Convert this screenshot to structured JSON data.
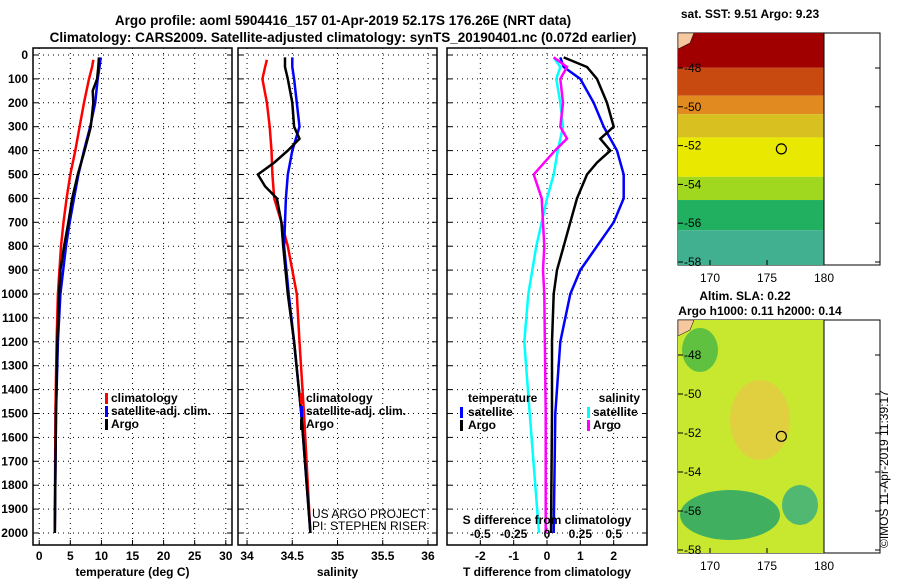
{
  "header": {
    "line1": "Argo profile: aoml 5904416_157 01-Apr-2019 52.17S 176.26E (NRT data)",
    "line2": "Climatology: CARS2009. Satellite-adjusted climatology: synTS_20190401.nc (0.072d earlier)"
  },
  "colors": {
    "climatology": "#ff0000",
    "satellite": "#0000ff",
    "argo": "#000000",
    "sal_sat": "#00ffff",
    "sal_argo": "#ff00ff"
  },
  "chart_data": [
    {
      "type": "line",
      "xlabel": "temperature (deg C)",
      "xlim": [
        -1,
        31
      ],
      "ylim": [
        2050,
        0
      ],
      "xticks": [
        "0",
        "5",
        "10",
        "15",
        "20",
        "25",
        "30"
      ],
      "xtickvals": [
        0,
        5,
        10,
        15,
        20,
        25,
        30
      ],
      "yticks": [
        "0",
        "100",
        "200",
        "300",
        "400",
        "500",
        "600",
        "700",
        "800",
        "900",
        "1000",
        "1100",
        "1200",
        "1300",
        "1400",
        "1500",
        "1600",
        "1700",
        "1800",
        "1900",
        "2000"
      ],
      "legend": [
        "climatology",
        "satellite-adj. clim.",
        "Argo"
      ],
      "series": [
        {
          "name": "climatology",
          "depth": [
            20,
            50,
            100,
            200,
            300,
            400,
            500,
            600,
            700,
            800,
            1000,
            1200,
            1500,
            2000
          ],
          "values": [
            8.7,
            8.5,
            8.0,
            7.2,
            6.5,
            5.8,
            5.0,
            4.4,
            3.9,
            3.5,
            3.0,
            2.8,
            2.6,
            2.5
          ]
        },
        {
          "name": "satellite-adj. clim.",
          "depth": [
            10,
            50,
            100,
            200,
            300,
            400,
            500,
            600,
            700,
            800,
            1000,
            1200,
            1500,
            2000
          ],
          "values": [
            9.9,
            9.7,
            9.4,
            9.0,
            8.2,
            7.2,
            6.3,
            5.6,
            4.9,
            4.3,
            3.4,
            3.0,
            2.7,
            2.5
          ]
        },
        {
          "name": "Argo",
          "depth": [
            10,
            50,
            100,
            150,
            200,
            300,
            350,
            400,
            500,
            600,
            700,
            800,
            900,
            1000,
            1200,
            1500,
            2000
          ],
          "values": [
            9.6,
            9.5,
            9.3,
            8.6,
            8.7,
            8.3,
            7.8,
            7.3,
            6.2,
            5.3,
            4.7,
            4.0,
            3.4,
            3.2,
            2.9,
            2.7,
            2.5
          ]
        }
      ]
    },
    {
      "type": "line",
      "xlabel": "salinity",
      "xlim": [
        33.9,
        36.1
      ],
      "ylim": [
        2050,
        0
      ],
      "xticks": [
        "34",
        "34.5",
        "35",
        "35.5",
        "36"
      ],
      "xtickvals": [
        34,
        34.5,
        35,
        35.5,
        36
      ],
      "legend": [
        "climatology",
        "satellite-adj. clim.",
        "Argo"
      ],
      "credit": [
        "US ARGO PROJECT",
        "PI: STEPHEN RISER"
      ],
      "series": [
        {
          "name": "climatology",
          "depth": [
            20,
            50,
            100,
            200,
            300,
            400,
            500,
            600,
            700,
            800,
            1000,
            1200,
            1500,
            2000
          ],
          "values": [
            34.22,
            34.2,
            34.17,
            34.22,
            34.25,
            34.27,
            34.28,
            34.3,
            34.38,
            34.45,
            34.55,
            34.58,
            34.63,
            34.7
          ]
        },
        {
          "name": "satellite-adj. clim.",
          "depth": [
            10,
            50,
            100,
            200,
            300,
            400,
            500,
            600,
            700,
            800,
            1000,
            1200,
            1500,
            2000
          ],
          "values": [
            34.5,
            34.5,
            34.52,
            34.55,
            34.58,
            34.5,
            34.45,
            34.43,
            34.42,
            34.41,
            34.46,
            34.52,
            34.6,
            34.7
          ]
        },
        {
          "name": "Argo",
          "depth": [
            10,
            50,
            100,
            200,
            300,
            350,
            400,
            450,
            500,
            550,
            600,
            700,
            800,
            1000,
            1200,
            1500,
            2000
          ],
          "values": [
            34.42,
            34.42,
            34.45,
            34.5,
            34.52,
            34.58,
            34.45,
            34.3,
            34.12,
            34.2,
            34.33,
            34.38,
            34.4,
            34.45,
            34.52,
            34.6,
            34.7
          ]
        }
      ]
    },
    {
      "type": "line",
      "xlabel": "T difference from climatology",
      "xlim": [
        -3,
        3
      ],
      "ylim": [
        2050,
        0
      ],
      "xticks": [
        "-2",
        "-1",
        "0",
        "1",
        "2"
      ],
      "xtickvals": [
        -2,
        -1,
        0,
        1,
        2
      ],
      "s_label": "S difference from climatology",
      "s_ticks": [
        "-0.5",
        "-0.25",
        "0",
        "0.25",
        "0.5"
      ],
      "s_tickvals": [
        -0.5,
        -0.25,
        0,
        0.25,
        0.5
      ],
      "legend_t": {
        "title": "temperature",
        "items": [
          "satellite",
          "Argo"
        ]
      },
      "legend_s": {
        "title": "salinity",
        "items": [
          "satellite",
          "Argo"
        ]
      },
      "series": [
        {
          "name": "T satellite",
          "depth": [
            10,
            50,
            100,
            200,
            300,
            400,
            500,
            600,
            700,
            800,
            900,
            1000,
            1200,
            1500,
            2000
          ],
          "values": [
            0.4,
            0.5,
            1.0,
            1.4,
            1.7,
            2.1,
            2.3,
            2.3,
            2.0,
            1.5,
            1.0,
            0.7,
            0.4,
            0.25,
            0.2
          ]
        },
        {
          "name": "T Argo",
          "depth": [
            10,
            50,
            100,
            200,
            300,
            350,
            400,
            450,
            500,
            600,
            700,
            800,
            900,
            1000,
            1200,
            1500,
            2000
          ],
          "values": [
            0.5,
            1.2,
            1.5,
            1.8,
            2.0,
            1.6,
            1.9,
            1.5,
            1.2,
            0.9,
            0.7,
            0.5,
            0.3,
            0.2,
            0.15,
            0.15,
            0.12
          ]
        },
        {
          "name": "S satellite",
          "depth": [
            10,
            50,
            100,
            200,
            300,
            400,
            500,
            600,
            700,
            800,
            1000,
            1200,
            1500,
            2000
          ],
          "values": [
            0.05,
            0.1,
            0.07,
            0.1,
            0.12,
            0.08,
            0.05,
            0.0,
            -0.04,
            -0.08,
            -0.14,
            -0.17,
            -0.13,
            -0.06
          ]
        },
        {
          "name": "S Argo",
          "depth": [
            10,
            50,
            100,
            200,
            300,
            350,
            400,
            450,
            500,
            600,
            800,
            900,
            1000,
            1500,
            2000
          ],
          "values": [
            0.05,
            0.15,
            0.1,
            0.12,
            0.1,
            0.15,
            0.06,
            -0.02,
            -0.1,
            -0.04,
            -0.02,
            -0.03,
            -0.02,
            -0.01,
            -0.01
          ]
        }
      ]
    }
  ],
  "maps": [
    {
      "title": "sat. SST: 9.51 Argo: 9.23",
      "lat_ticks": [
        "-48",
        "-50",
        "-52",
        "-54",
        "-56",
        "-58"
      ],
      "lon_ticks": [
        "170",
        "175",
        "180"
      ]
    },
    {
      "title1": "Altim. SLA: 0.22",
      "title2": "Argo h1000: 0.11 h2000: 0.14",
      "lat_ticks": [
        "-48",
        "-50",
        "-52",
        "-54",
        "-56",
        "-58"
      ],
      "lon_ticks": [
        "170",
        "175",
        "180"
      ]
    }
  ],
  "profile_location": {
    "lat": -52.17,
    "lon": 176.26
  },
  "footer": "©IMOS 11-Apr-2019 11:39:17"
}
